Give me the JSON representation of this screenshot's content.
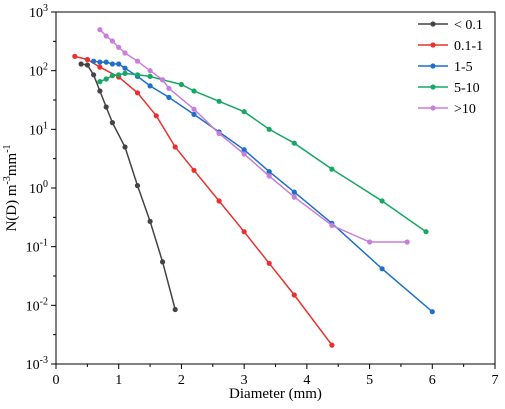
{
  "chart_data": {
    "type": "line",
    "xlabel": "Diameter (mm)",
    "ylabel": {
      "base": "N(D) m",
      "exp1": "-3",
      "mid": "mm",
      "exp2": "-1"
    },
    "xlim": [
      0,
      7
    ],
    "ylim": [
      0.001,
      1000
    ],
    "yscale": "log",
    "x_ticks": [
      "0",
      "1",
      "2",
      "3",
      "4",
      "5",
      "6",
      "7"
    ],
    "y_ticks": [
      {
        "base": "10",
        "exp": "-3"
      },
      {
        "base": "10",
        "exp": "-2"
      },
      {
        "base": "10",
        "exp": "-1"
      },
      {
        "base": "10",
        "exp": "0"
      },
      {
        "base": "10",
        "exp": "1"
      },
      {
        "base": "10",
        "exp": "2"
      },
      {
        "base": "10",
        "exp": "3"
      }
    ],
    "legend_position": "top-right",
    "series": [
      {
        "name": "< 0.1",
        "color": "#444444",
        "points": [
          [
            0.4,
            130
          ],
          [
            0.5,
            125
          ],
          [
            0.6,
            85
          ],
          [
            0.7,
            45
          ],
          [
            0.8,
            24
          ],
          [
            0.9,
            13
          ],
          [
            1.1,
            5
          ],
          [
            1.3,
            1.1
          ],
          [
            1.5,
            0.27
          ],
          [
            1.7,
            0.055
          ],
          [
            1.9,
            0.0085
          ]
        ]
      },
      {
        "name": "0.1-1",
        "color": "#e8312e",
        "points": [
          [
            0.3,
            175
          ],
          [
            0.5,
            155
          ],
          [
            0.7,
            115
          ],
          [
            1.0,
            78
          ],
          [
            1.3,
            42
          ],
          [
            1.6,
            17
          ],
          [
            1.9,
            5
          ],
          [
            2.2,
            2
          ],
          [
            2.6,
            0.6
          ],
          [
            3.0,
            0.18
          ],
          [
            3.4,
            0.052
          ],
          [
            3.8,
            0.015
          ],
          [
            4.4,
            0.0021
          ]
        ]
      },
      {
        "name": "1-5",
        "color": "#1e6fc9",
        "points": [
          [
            0.6,
            145
          ],
          [
            0.7,
            140
          ],
          [
            0.8,
            140
          ],
          [
            0.9,
            130
          ],
          [
            1.0,
            130
          ],
          [
            1.1,
            110
          ],
          [
            1.3,
            80
          ],
          [
            1.5,
            55
          ],
          [
            1.8,
            35
          ],
          [
            2.2,
            18
          ],
          [
            2.6,
            9
          ],
          [
            3.0,
            4.5
          ],
          [
            3.4,
            1.9
          ],
          [
            3.8,
            0.85
          ],
          [
            4.4,
            0.25
          ],
          [
            5.2,
            0.042
          ],
          [
            6.0,
            0.0078
          ]
        ]
      },
      {
        "name": "5-10",
        "color": "#16a862",
        "points": [
          [
            0.7,
            65
          ],
          [
            0.8,
            72
          ],
          [
            0.9,
            82
          ],
          [
            1.0,
            85
          ],
          [
            1.1,
            90
          ],
          [
            1.3,
            85
          ],
          [
            1.5,
            80
          ],
          [
            1.7,
            70
          ],
          [
            2.0,
            58
          ],
          [
            2.2,
            45
          ],
          [
            2.6,
            30
          ],
          [
            3.0,
            20
          ],
          [
            3.4,
            10
          ],
          [
            3.8,
            5.8
          ],
          [
            4.4,
            2.1
          ],
          [
            5.2,
            0.6
          ],
          [
            5.9,
            0.18
          ]
        ]
      },
      {
        "name": ">10",
        "color": "#c87fd9",
        "points": [
          [
            0.7,
            500
          ],
          [
            0.8,
            390
          ],
          [
            0.9,
            320
          ],
          [
            1.0,
            250
          ],
          [
            1.1,
            200
          ],
          [
            1.3,
            145
          ],
          [
            1.5,
            100
          ],
          [
            1.7,
            70
          ],
          [
            1.8,
            50
          ],
          [
            2.2,
            22
          ],
          [
            2.6,
            8.5
          ],
          [
            3.0,
            3.8
          ],
          [
            3.4,
            1.6
          ],
          [
            3.8,
            0.7
          ],
          [
            4.4,
            0.23
          ],
          [
            5.0,
            0.12
          ],
          [
            5.6,
            0.12
          ]
        ]
      }
    ]
  }
}
